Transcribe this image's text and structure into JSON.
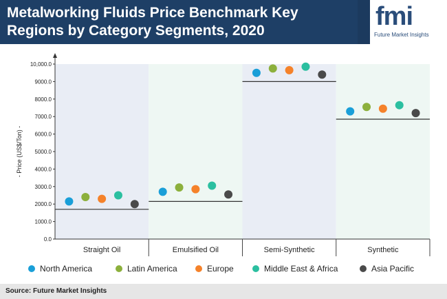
{
  "header": {
    "title_line1": "Metalworking Fluids Price Benchmark Key",
    "title_line2": "Regions by Category Segments, 2020"
  },
  "logo": {
    "mark": "fmi",
    "sub": "Future Market Insights"
  },
  "footer": {
    "source": "Source: Future Market Insights"
  },
  "chart_data": {
    "type": "scatter",
    "title": "Metalworking Fluids Price Benchmark Key Regions by Category Segments, 2020",
    "ylabel": "- Price (US$/Ton) -",
    "ylim": [
      0,
      10000
    ],
    "yticks": [
      "0.0",
      "1000.0",
      "2000.0",
      "3000.0",
      "4000.0",
      "5000.0",
      "6000.0",
      "7000.0",
      "8000.0",
      "9000.0",
      "10,000.0"
    ],
    "categories": [
      "Straight Oil",
      "Emulsified Oil",
      "Semi-Synthetic",
      "Synthetic"
    ],
    "benchmark_lines": [
      1700,
      2150,
      9000,
      6850
    ],
    "series": [
      {
        "name": "North America",
        "color": "#1a9fd8",
        "values": [
          2150,
          2700,
          9500,
          7300
        ]
      },
      {
        "name": "Latin America",
        "color": "#8cb03c",
        "values": [
          2400,
          2950,
          9750,
          7550
        ]
      },
      {
        "name": "Europe",
        "color": "#f5822a",
        "values": [
          2300,
          2850,
          9650,
          7450
        ]
      },
      {
        "name": "Middle East & Africa",
        "color": "#2bbfa0",
        "values": [
          2500,
          3050,
          9850,
          7650
        ]
      },
      {
        "name": "Asia Pacific",
        "color": "#4a4a4a",
        "values": [
          2000,
          2550,
          9400,
          7200
        ]
      }
    ],
    "panel_colors": [
      "#e9edf5",
      "#eef7f3",
      "#e9edf5",
      "#eef7f3"
    ],
    "legend_position": "bottom",
    "grid": false
  }
}
